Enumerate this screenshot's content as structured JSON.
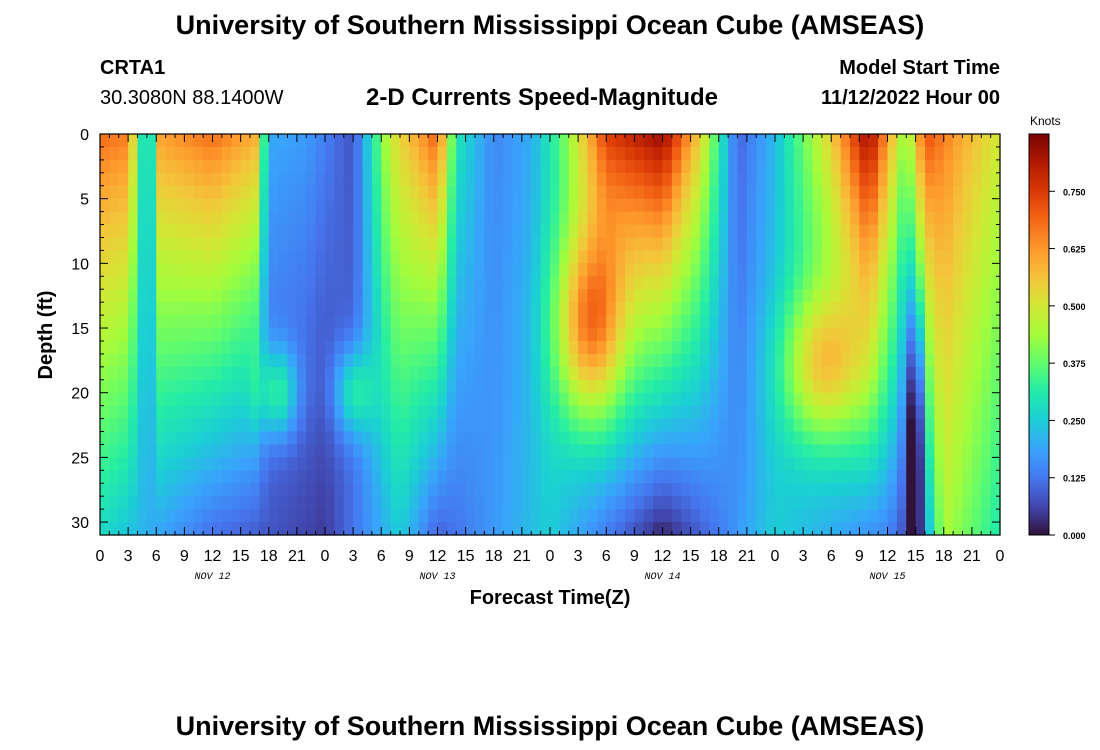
{
  "header": {
    "title": "University of Southern Mississippi Ocean Cube (AMSEAS)",
    "station": "CRTA1",
    "coords": "30.3080N  88.1400W",
    "subtitle": "2-D Currents Speed-Magnitude",
    "model_start_label": "Model Start Time",
    "model_start_value": "11/12/2022 Hour 00"
  },
  "footer": {
    "title": "University of Southern Mississippi Ocean Cube (AMSEAS)"
  },
  "chart_data": {
    "type": "heatmap",
    "title": "2-D Currents Speed-Magnitude",
    "xlabel": "Forecast Time(Z)",
    "ylabel": "Depth (ft)",
    "xlim_hours": [
      0,
      96
    ],
    "ylim_ft": [
      0,
      31
    ],
    "y_ticks": [
      0,
      5,
      10,
      15,
      20,
      25,
      30
    ],
    "x_tick_labels": [
      "0",
      "3",
      "6",
      "9",
      "12",
      "15",
      "18",
      "21",
      "0",
      "3",
      "6",
      "9",
      "12",
      "15",
      "18",
      "21",
      "0",
      "3",
      "6",
      "9",
      "12",
      "15",
      "18",
      "21",
      "0",
      "3",
      "6",
      "9",
      "12",
      "15",
      "18",
      "21",
      "0"
    ],
    "date_labels": [
      {
        "label": "NOV 12",
        "hour": 12
      },
      {
        "label": "NOV 13",
        "hour": 36
      },
      {
        "label": "NOV 14",
        "hour": 60
      },
      {
        "label": "NOV 15",
        "hour": 84
      }
    ],
    "colorbar": {
      "title": "Knots",
      "min": 0.0,
      "max": 0.875,
      "ticks": [
        "0.000",
        "0.125",
        "0.250",
        "0.375",
        "0.500",
        "0.625",
        "0.750"
      ]
    },
    "surface_speed_profile": [
      {
        "hour": 0,
        "value": 0.68
      },
      {
        "hour": 3,
        "value": 0.66
      },
      {
        "hour": 4.5,
        "value": 0.3
      },
      {
        "hour": 5.5,
        "value": 0.3
      },
      {
        "hour": 6.5,
        "value": 0.62
      },
      {
        "hour": 12,
        "value": 0.68
      },
      {
        "hour": 16.5,
        "value": 0.6
      },
      {
        "hour": 18,
        "value": 0.2
      },
      {
        "hour": 22,
        "value": 0.18
      },
      {
        "hour": 27,
        "value": 0.08
      },
      {
        "hour": 31,
        "value": 0.5
      },
      {
        "hour": 36,
        "value": 0.7
      },
      {
        "hour": 38,
        "value": 0.3
      },
      {
        "hour": 42,
        "value": 0.15
      },
      {
        "hour": 46,
        "value": 0.2
      },
      {
        "hour": 49,
        "value": 0.35
      },
      {
        "hour": 54,
        "value": 0.74
      },
      {
        "hour": 60,
        "value": 0.85
      },
      {
        "hour": 64,
        "value": 0.55
      },
      {
        "hour": 68,
        "value": 0.1
      },
      {
        "hour": 72,
        "value": 0.22
      },
      {
        "hour": 78,
        "value": 0.55
      },
      {
        "hour": 82,
        "value": 0.85
      },
      {
        "hour": 86,
        "value": 0.4
      },
      {
        "hour": 88,
        "value": 0.72
      },
      {
        "hour": 92,
        "value": 0.6
      },
      {
        "hour": 96,
        "value": 0.5
      }
    ],
    "bottom_speed_profile": [
      {
        "hour": 0,
        "value": 0.27
      },
      {
        "hour": 12,
        "value": 0.12
      },
      {
        "hour": 24,
        "value": 0.05
      },
      {
        "hour": 32,
        "value": 0.25
      },
      {
        "hour": 36,
        "value": 0.1
      },
      {
        "hour": 48,
        "value": 0.25
      },
      {
        "hour": 60,
        "value": 0.02
      },
      {
        "hour": 72,
        "value": 0.25
      },
      {
        "hour": 84,
        "value": 0.15
      },
      {
        "hour": 87,
        "value": 0.05
      },
      {
        "hour": 90,
        "value": 0.45
      },
      {
        "hour": 96,
        "value": 0.3
      }
    ]
  }
}
